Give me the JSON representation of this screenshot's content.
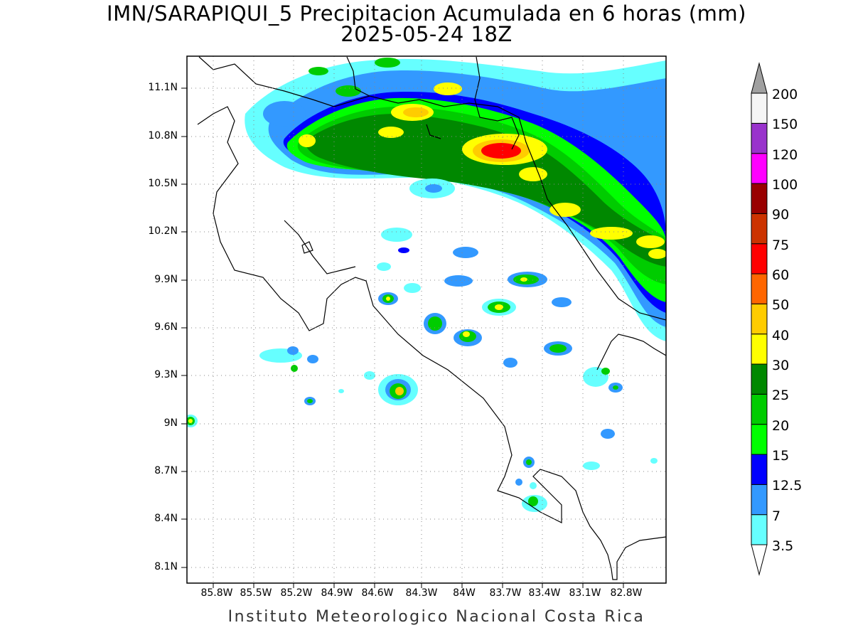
{
  "title": {
    "line1": "IMN/SARAPIQUI_5 Precipitacion Acumulada en 6 horas (mm)",
    "line2": "2025-05-24 18Z"
  },
  "footer": "Instituto Meteorologico Nacional Costa Rica",
  "map": {
    "lat_range": [
      7.99,
      11.3
    ],
    "lon_range": [
      -85.98,
      -82.45
    ],
    "lat_ticks": [
      "11.1N",
      "10.8N",
      "10.5N",
      "10.2N",
      "9.9N",
      "9.6N",
      "9.3N",
      "9N",
      "8.7N",
      "8.4N",
      "8.1N"
    ],
    "lon_ticks": [
      "85.8W",
      "85.5W",
      "85.2W",
      "84.9W",
      "84.6W",
      "84.3W",
      "84W",
      "83.7W",
      "83.4W",
      "83.1W",
      "82.8W"
    ],
    "grid": "dotted"
  },
  "colorbar": {
    "labels": [
      "3.5",
      "7",
      "12.5",
      "15",
      "20",
      "25",
      "30",
      "40",
      "50",
      "60",
      "75",
      "90",
      "100",
      "120",
      "150",
      "200"
    ],
    "colors": [
      "#ffffff",
      "#66ffff",
      "#3399ff",
      "#0000ff",
      "#00ff00",
      "#00cc00",
      "#008800",
      "#ffff00",
      "#ffcc00",
      "#ff6600",
      "#ff0000",
      "#cc3300",
      "#990000",
      "#ff00ff",
      "#9933cc",
      "#f5f5f5",
      "#a0a0a0"
    ]
  }
}
